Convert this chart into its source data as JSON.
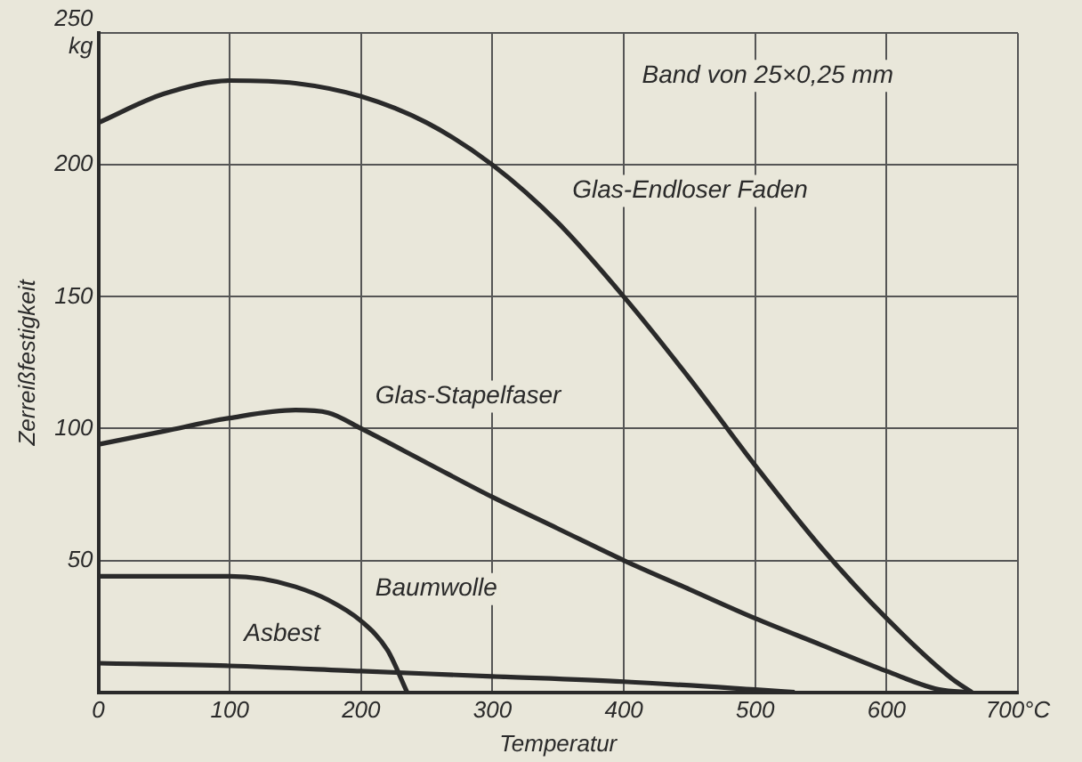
{
  "chart_data": {
    "type": "line",
    "xlabel": "Temperatur",
    "ylabel": "Zerreißfestigkeit",
    "xlim": [
      0,
      700
    ],
    "xticks": [
      0,
      100,
      200,
      300,
      400,
      500,
      600,
      {
        "value": 700,
        "label": "700°C"
      }
    ],
    "ylim": [
      0,
      250
    ],
    "yticks": [
      {
        "value": 0,
        "label": null
      },
      50,
      100,
      150,
      200,
      {
        "value": 250,
        "label": "250 kg"
      }
    ],
    "grid": true,
    "legend": false,
    "marker": "none",
    "line_style": "solid",
    "series": [
      {
        "color": "#2a2a2a",
        "x": [
          0,
          50,
          100,
          150,
          200,
          250,
          300,
          350,
          400,
          450,
          500,
          550,
          600,
          650,
          665
        ],
        "values": [
          216,
          227,
          232,
          231,
          226,
          216,
          200,
          178,
          150,
          119,
          86,
          55,
          28,
          5,
          0
        ]
      },
      {
        "color": "#2a2a2a",
        "x": [
          0,
          50,
          100,
          150,
          175,
          200,
          250,
          300,
          350,
          400,
          450,
          500,
          550,
          600,
          640,
          665
        ],
        "values": [
          94,
          99,
          104,
          107,
          106,
          100,
          87,
          74,
          62,
          50,
          39,
          28,
          18,
          8,
          1,
          0
        ]
      },
      {
        "color": "#2a2a2a",
        "x": [
          0,
          100,
          125,
          150,
          175,
          200,
          220,
          235
        ],
        "values": [
          44,
          44,
          43,
          40,
          35,
          27,
          16,
          0
        ]
      },
      {
        "color": "#2a2a2a",
        "x": [
          0,
          100,
          200,
          300,
          400,
          500,
          530
        ],
        "values": [
          11,
          10,
          8,
          6,
          4,
          1,
          0
        ]
      }
    ],
    "annotations": [
      "Band von 25×0,25 mm",
      {
        "text": "Glas-Endloser Faden",
        "x": 350,
        "y": 178
      },
      {
        "text": "Glas-Stapelfaser",
        "x": 200,
        "y": 100
      },
      {
        "text": "Baumwolle",
        "x": 200,
        "y": 27
      },
      {
        "text": "Asbest",
        "x": 100,
        "y": 10
      }
    ]
  }
}
